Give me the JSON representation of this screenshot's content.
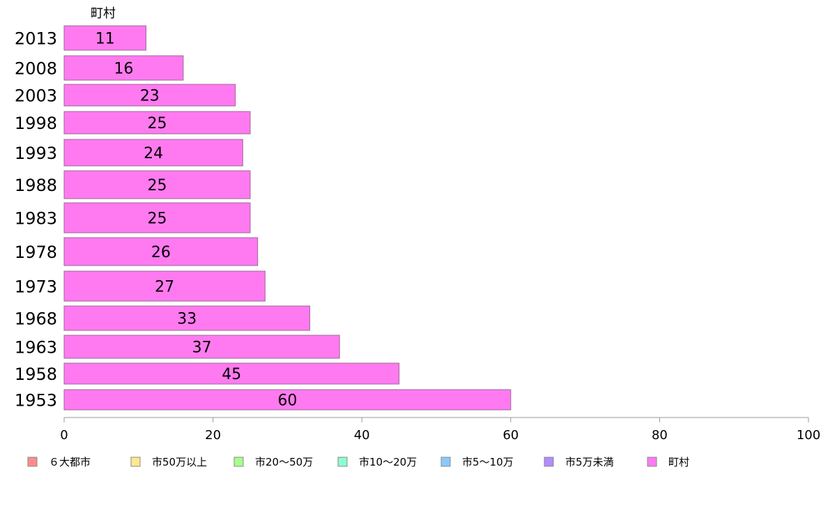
{
  "chart_data": {
    "type": "bar",
    "orientation": "horizontal",
    "title": "",
    "xlabel": "",
    "ylabel": "",
    "xlim": [
      0,
      100
    ],
    "xticks": [
      0,
      20,
      40,
      60,
      80,
      100
    ],
    "grid": false,
    "legend_position": "bottom",
    "categories": [
      "2013",
      "2008",
      "2003",
      "1998",
      "1993",
      "1988",
      "1983",
      "1978",
      "1973",
      "1968",
      "1963",
      "1958",
      "1953"
    ],
    "series": [
      {
        "name": "町村",
        "color": "#ff7af0",
        "values": [
          11,
          16,
          23,
          25,
          24,
          25,
          25,
          26,
          27,
          33,
          37,
          45,
          60
        ]
      }
    ],
    "data_labels": [
      "11",
      "16",
      "23",
      "25",
      "24",
      "25",
      "25",
      "26",
      "27",
      "33",
      "37",
      "45",
      "60"
    ],
    "series_label_on_chart": "町村",
    "legend": [
      {
        "label": "６大都市",
        "color": "#ff8c8c"
      },
      {
        "label": "市50万以上",
        "color": "#ffe98c"
      },
      {
        "label": "市20～50万",
        "color": "#a8ff8c"
      },
      {
        "label": "市10～20万",
        "color": "#8cffd2"
      },
      {
        "label": "市5～10万",
        "color": "#8cc8ff"
      },
      {
        "label": "市5万未満",
        "color": "#b48cff"
      },
      {
        "label": "町村",
        "color": "#ff7af0"
      }
    ]
  }
}
